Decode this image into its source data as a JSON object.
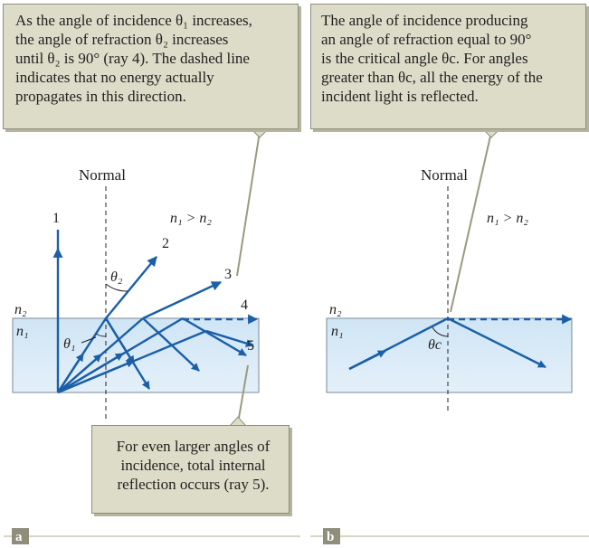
{
  "panel_a": {
    "callout_top": {
      "line1": "As the angle of incidence θ₁ increases,",
      "line2": "the angle of refraction θ₂  increases",
      "line3": "until θ₂ is 90° (ray 4). The dashed line",
      "line4": "indicates that no energy actually",
      "line5": "propagates in this direction."
    },
    "callout_bottom": {
      "line1": "For even larger angles of",
      "line2": "incidence, total internal",
      "line3": "reflection occurs (ray 5)."
    },
    "normal_label": "Normal",
    "index_relation": "n₁ > n₂",
    "medium_top": "n₂",
    "medium_bottom": "n₁",
    "theta1": "θ₁",
    "theta2": "θ₂",
    "rays": [
      "1",
      "2",
      "3",
      "4",
      "5"
    ],
    "panel_label": "a"
  },
  "panel_b": {
    "callout_top": {
      "line1": "The angle of incidence producing",
      "line2": "an angle of refraction equal to 90°",
      "line3": "is the critical angle θc. For angles",
      "line4": "greater than θc, all the energy of the",
      "line5": "incident light is reflected."
    },
    "normal_label": "Normal",
    "index_relation": "n₁ > n₂",
    "medium_top": "n₂",
    "medium_bottom": "n₁",
    "thetac": "θc",
    "panel_label": "b"
  },
  "colors": {
    "ray": "#1a5fa8",
    "medium_fill": "#d6e8f5",
    "callout_fill": "#dcdcc8",
    "leader": "#9a9a80",
    "panel_label_fill": "#8e8e7a"
  }
}
